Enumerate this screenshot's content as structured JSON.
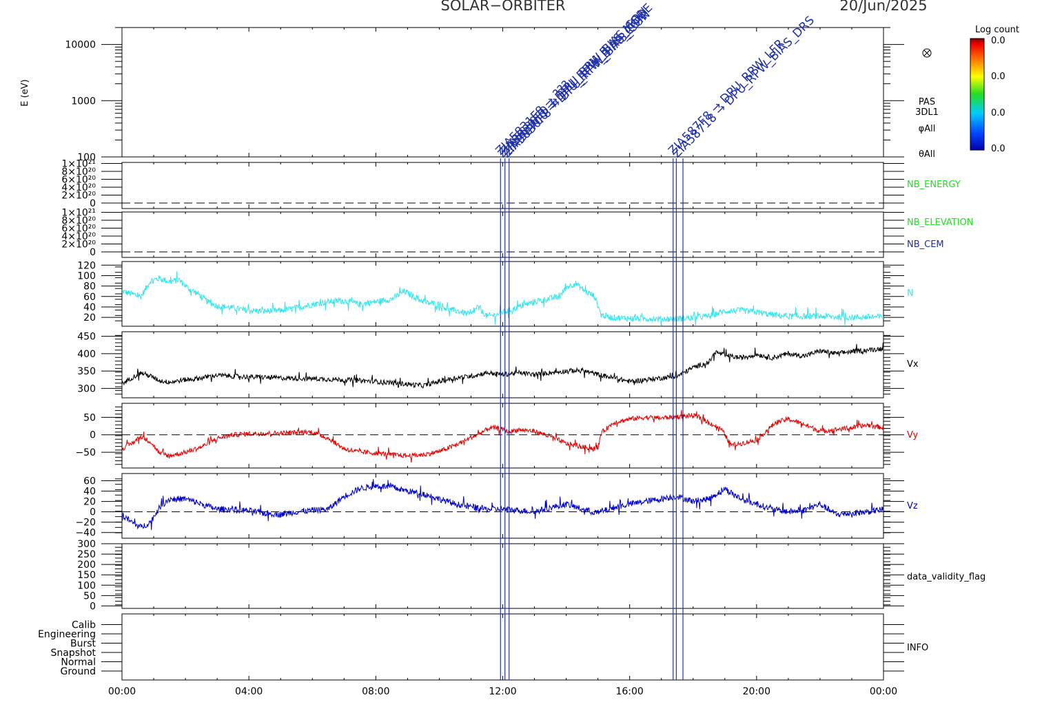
{
  "header": {
    "mission": "SOLAR−ORBITER",
    "date": "20/Jun/2025"
  },
  "colorbar": {
    "title": "Log count",
    "labels": [
      "0.0",
      "0.0",
      "0.0",
      "0.0"
    ]
  },
  "panel_labels": {
    "pas": [
      "PAS",
      "3DL1",
      "φAll",
      "θAll"
    ],
    "nb_energy": "NB_ENERGY",
    "nb_elevation": "NB_ELEVATION",
    "nb_cem": "NB_CEM",
    "n": "N",
    "vx": "Vx",
    "vy": "Vy",
    "vz": "Vz",
    "dvf": "data_validity_flag",
    "info": "INFO"
  },
  "marker_icon": "circle-cross-icon",
  "colors": {
    "cyan": "#33e6ee",
    "black": "#000000",
    "red": "#e60000",
    "blue": "#0000cc",
    "green": "#22dd22",
    "navy": "#1f2fa0",
    "event": "#2233aa"
  },
  "chart_data": [
    {
      "type": "heatmap",
      "name": "PAS 3DL1 spectrogram",
      "ylabel": "E (eV)",
      "yscale": "log",
      "ylim": [
        100,
        20000
      ],
      "y_ticks": [
        "100",
        "1000",
        "10000"
      ],
      "values": []
    },
    {
      "type": "line",
      "name": "NB_ENERGY",
      "y_ticks": [
        "0",
        "2×10²⁰",
        "4×10²⁰",
        "6×10²⁰",
        "8×10²⁰",
        "1×10²¹"
      ],
      "zero_line": true,
      "values": []
    },
    {
      "type": "line",
      "name": "NB_ELEVATION / NB_CEM",
      "y_ticks": [
        "0",
        "2×10²⁰",
        "4×10²⁰",
        "6×10²⁰",
        "8×10²⁰",
        "1×10²¹"
      ],
      "zero_line": true,
      "values": []
    },
    {
      "type": "line",
      "name": "N",
      "ylim": [
        3,
        127
      ],
      "y_ticks": [
        "20",
        "40",
        "60",
        "80",
        "100",
        "120"
      ],
      "x": [
        0,
        0.3,
        0.6,
        0.9,
        1.2,
        1.5,
        1.8,
        2.1,
        2.4,
        2.7,
        3,
        3.5,
        4,
        4.5,
        5,
        5.5,
        6,
        6.5,
        7,
        7.5,
        8,
        8.5,
        8.9,
        9.2,
        9.6,
        10,
        10.3,
        10.6,
        11,
        11.2,
        11.5,
        11.8,
        12,
        12.3,
        12.6,
        13,
        13.4,
        13.8,
        14,
        14.3,
        14.6,
        14.9,
        15.1,
        15.4,
        16,
        17,
        17.5,
        18,
        18.5,
        19,
        19.5,
        20,
        20.5,
        21,
        22,
        23,
        24
      ],
      "values": [
        70,
        65,
        60,
        90,
        95,
        88,
        92,
        75,
        65,
        50,
        42,
        38,
        33,
        32,
        33,
        38,
        45,
        50,
        52,
        45,
        50,
        55,
        70,
        60,
        48,
        45,
        35,
        32,
        25,
        40,
        22,
        25,
        30,
        35,
        42,
        50,
        55,
        60,
        78,
        85,
        70,
        60,
        25,
        20,
        18,
        17,
        17,
        20,
        22,
        32,
        33,
        30,
        25,
        22,
        22,
        20,
        21
      ]
    },
    {
      "type": "line",
      "name": "Vx",
      "ylim": [
        273,
        463
      ],
      "y_ticks": [
        "300",
        "350",
        "400",
        "450"
      ],
      "x": [
        0,
        0.3,
        0.6,
        0.9,
        1.2,
        1.5,
        2,
        2.5,
        3,
        3.5,
        4,
        5,
        6,
        7,
        8,
        9,
        9.5,
        10,
        10.5,
        11,
        11.5,
        12,
        12.5,
        13,
        13.5,
        14,
        14.5,
        15,
        15.5,
        16,
        17,
        17.5,
        18,
        18.5,
        18.7,
        19,
        19.5,
        20,
        20.5,
        21,
        21.5,
        22,
        22.5,
        23,
        23.5,
        24
      ],
      "values": [
        313,
        330,
        345,
        335,
        322,
        318,
        325,
        330,
        338,
        335,
        333,
        330,
        328,
        325,
        320,
        312,
        308,
        320,
        330,
        335,
        345,
        340,
        345,
        340,
        345,
        350,
        352,
        340,
        330,
        320,
        330,
        335,
        360,
        375,
        405,
        395,
        388,
        398,
        388,
        400,
        393,
        408,
        400,
        406,
        410,
        415
      ]
    },
    {
      "type": "line",
      "name": "Vy",
      "ylim": [
        -95,
        90
      ],
      "y_ticks": [
        "−50",
        "0",
        "50"
      ],
      "zero_line": true,
      "x": [
        0,
        0.3,
        0.6,
        0.9,
        1.2,
        1.5,
        2,
        2.5,
        3,
        3.5,
        4,
        5,
        6,
        6.5,
        7,
        7.5,
        8,
        8.5,
        9,
        9.5,
        10,
        10.5,
        11,
        11.3,
        11.6,
        11.9,
        12.2,
        12.5,
        13,
        13.5,
        14,
        14.5,
        15,
        15.1,
        15.5,
        16,
        16.5,
        17,
        17.5,
        18,
        18.3,
        18.6,
        18.9,
        19.2,
        19.5,
        20,
        20.3,
        20.6,
        21,
        21.5,
        22,
        22.5,
        23,
        23.5,
        24
      ],
      "values": [
        -40,
        -25,
        -5,
        -20,
        -55,
        -60,
        -50,
        -35,
        -10,
        0,
        3,
        5,
        8,
        -10,
        -40,
        -50,
        -52,
        -57,
        -60,
        -57,
        -48,
        -30,
        -8,
        5,
        20,
        18,
        8,
        15,
        10,
        -5,
        -25,
        -35,
        -40,
        5,
        35,
        45,
        50,
        48,
        52,
        55,
        45,
        30,
        15,
        -30,
        -25,
        -15,
        10,
        35,
        45,
        30,
        10,
        15,
        20,
        28,
        20
      ]
    },
    {
      "type": "line",
      "name": "Vz",
      "ylim": [
        -51,
        74
      ],
      "y_ticks": [
        "−40",
        "−20",
        "0",
        "20",
        "40",
        "60"
      ],
      "zero_line": true,
      "x": [
        0,
        0.3,
        0.6,
        0.9,
        1.2,
        1.5,
        2,
        2.5,
        3,
        3.5,
        4,
        4.5,
        5,
        5.5,
        6,
        6.5,
        7,
        7.5,
        8,
        8.5,
        9,
        9.5,
        10,
        10.5,
        11,
        11.5,
        12,
        12.5,
        13,
        13.5,
        14,
        14.5,
        15,
        15.5,
        16,
        16.5,
        17,
        17.5,
        18,
        18.5,
        19,
        19.5,
        20,
        20.5,
        21,
        21.5,
        22,
        22.5,
        23,
        23.5,
        24
      ],
      "values": [
        -5,
        -20,
        -30,
        -20,
        10,
        25,
        25,
        15,
        5,
        5,
        2,
        -3,
        -5,
        0,
        3,
        5,
        30,
        45,
        50,
        48,
        40,
        35,
        25,
        15,
        10,
        5,
        5,
        3,
        0,
        8,
        15,
        5,
        -2,
        8,
        15,
        20,
        25,
        30,
        20,
        25,
        45,
        25,
        15,
        5,
        0,
        3,
        15,
        -5,
        -3,
        0,
        5
      ]
    },
    {
      "type": "line",
      "name": "data_validity_flag",
      "ylim": [
        -12,
        300
      ],
      "y_ticks": [
        "0",
        "50",
        "100",
        "150",
        "200",
        "250",
        "300"
      ],
      "values": []
    },
    {
      "type": "line",
      "name": "INFO",
      "y_ticks": [
        "Ground",
        "Normal",
        "Snapshot",
        "Burst",
        "Engineering",
        "Calib"
      ],
      "values": []
    }
  ],
  "time_axis": {
    "tick_labels": [
      "00:00",
      "04:00",
      "08:00",
      "12:00",
      "16:00",
      "20:00",
      "00:00"
    ],
    "tick_hours": [
      0,
      4,
      8,
      12,
      16,
      20,
      24
    ]
  },
  "events": {
    "hours": [
      11.93,
      12.07,
      12.2,
      17.37,
      17.47,
      17.68
    ],
    "annotations": [
      "ZIA5831F8 → ???",
      "ZIA5830F0 → DPU_RPW_BIAS_MODE",
      "ZIA5830F0 → DPU_RPW_BIAS_CON",
      "ZIA5830F8 → DPU_RPW_BIAS_CON",
      "ZIA58700 → DPU_RPW_BIAS_CON",
      "ZIA587F8 → DPU_RPW_LFR",
      "ZIA58718 → DPU_RPW_BIAS_DRS"
    ]
  }
}
